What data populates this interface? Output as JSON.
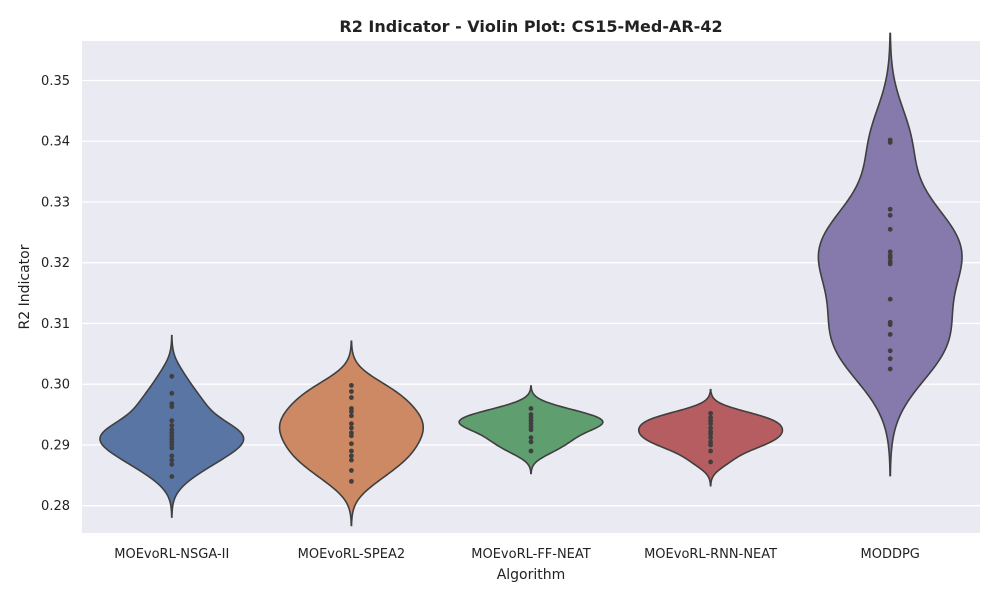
{
  "chart_data": {
    "type": "violin",
    "title": "R2 Indicator - Violin Plot: CS15-Med-AR-42",
    "xlabel": "Algorithm",
    "ylabel": "R2 Indicator",
    "ylim": [
      0.2755,
      0.3565
    ],
    "yticks": [
      0.28,
      0.29,
      0.3,
      0.31,
      0.32,
      0.33,
      0.34,
      0.35
    ],
    "ytick_labels": [
      "0.28",
      "0.29",
      "0.30",
      "0.31",
      "0.32",
      "0.33",
      "0.34",
      "0.35"
    ],
    "grid": true,
    "categories": [
      "MOEvoRL-NSGA-II",
      "MOEvoRL-SPEA2",
      "MOEvoRL-FF-NEAT",
      "MOEvoRL-RNN-NEAT",
      "MODDPG"
    ],
    "colors": [
      "#5875a4",
      "#cc8963",
      "#5f9e6e",
      "#b55d60",
      "#857aab"
    ],
    "series": [
      {
        "category": "MOEvoRL-NSGA-II",
        "values": [
          0.2848,
          0.2868,
          0.2875,
          0.2882,
          0.2895,
          0.29,
          0.2905,
          0.291,
          0.2915,
          0.292,
          0.2925,
          0.2932,
          0.294,
          0.2963,
          0.2968,
          0.2985,
          0.3013
        ]
      },
      {
        "category": "MOEvoRL-SPEA2",
        "values": [
          0.284,
          0.2858,
          0.2875,
          0.2882,
          0.289,
          0.2902,
          0.2915,
          0.292,
          0.2928,
          0.2935,
          0.2948,
          0.2955,
          0.296,
          0.2978,
          0.2988,
          0.2998
        ]
      },
      {
        "category": "MOEvoRL-FF-NEAT",
        "values": [
          0.289,
          0.2905,
          0.2912,
          0.2925,
          0.293,
          0.2935,
          0.294,
          0.2945,
          0.295,
          0.296
        ]
      },
      {
        "category": "MOEvoRL-RNN-NEAT",
        "values": [
          0.2872,
          0.289,
          0.29,
          0.2905,
          0.2912,
          0.2918,
          0.2922,
          0.2928,
          0.2935,
          0.294,
          0.2945,
          0.2952
        ]
      },
      {
        "category": "MODDPG",
        "values": [
          0.3025,
          0.3042,
          0.3055,
          0.3082,
          0.3098,
          0.3102,
          0.314,
          0.3198,
          0.3202,
          0.3208,
          0.3212,
          0.3218,
          0.3255,
          0.3278,
          0.3288,
          0.3398,
          0.3402
        ]
      }
    ]
  }
}
